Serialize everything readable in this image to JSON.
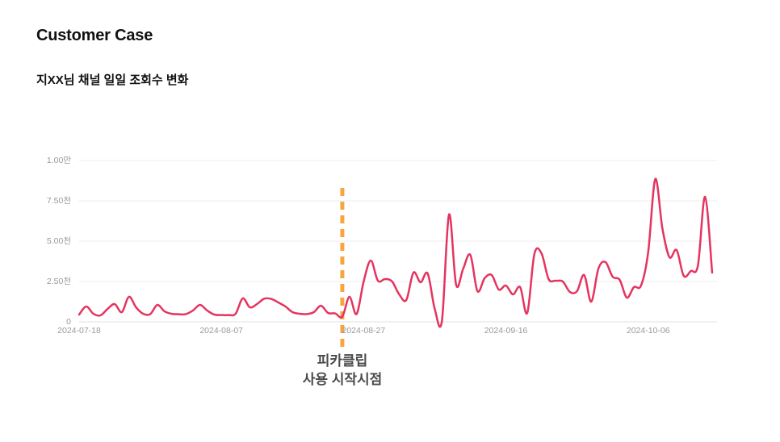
{
  "header": {
    "title": "Customer Case",
    "subtitle": "지XX님 채널 일일 조회수 변화"
  },
  "chart_data": {
    "type": "line",
    "title": "지XX님 채널 일일 조회수 변화",
    "x_start_date": "2024-07-18",
    "x_unit": "day",
    "x_tick_labels": [
      "2024-07-18",
      "2024-08-07",
      "2024-08-27",
      "2024-09-16",
      "2024-10-06"
    ],
    "x_tick_day_indices": [
      0,
      20,
      40,
      60,
      80
    ],
    "y_ticks": [
      {
        "value": 0,
        "label": "0"
      },
      {
        "value": 2500,
        "label": "2.50천"
      },
      {
        "value": 5000,
        "label": "5.00천"
      },
      {
        "value": 7500,
        "label": "7.50천"
      },
      {
        "value": 10000,
        "label": "1.00만"
      }
    ],
    "ylim": [
      0,
      10000
    ],
    "grid": "horizontal-only",
    "legend": "none",
    "series": [
      {
        "name": "daily-views",
        "color": "#E4345F",
        "values": [
          450,
          950,
          500,
          400,
          800,
          1100,
          600,
          1550,
          900,
          500,
          480,
          1050,
          650,
          500,
          470,
          480,
          700,
          1050,
          700,
          450,
          420,
          420,
          500,
          1450,
          900,
          1100,
          1430,
          1420,
          1200,
          950,
          600,
          500,
          480,
          600,
          1000,
          550,
          520,
          320,
          1550,
          480,
          2500,
          3800,
          2550,
          2650,
          2500,
          1700,
          1350,
          3050,
          2450,
          3000,
          800,
          50,
          6650,
          2300,
          3300,
          4150,
          1900,
          2700,
          2900,
          2000,
          2250,
          1700,
          2150,
          550,
          4200,
          4250,
          2650,
          2550,
          2500,
          1850,
          1900,
          2900,
          1250,
          3300,
          3700,
          2800,
          2600,
          1500,
          2150,
          2250,
          4300,
          8850,
          5800,
          4000,
          4450,
          2850,
          3150,
          3500,
          7750,
          3050
        ]
      }
    ],
    "marker": {
      "day_index": 37,
      "style": "dashed-vertical",
      "color": "#F6A63E",
      "label_line1": "피카클립",
      "label_line2": "사용 시작시점"
    }
  },
  "colors": {
    "background": "#ffffff",
    "line": "#E4345F",
    "marker": "#F6A63E",
    "gridline": "#ededed",
    "baseline": "#e0e0e0",
    "axis_text": "#999999",
    "annotation_text": "#4a4a4a",
    "title_text": "#111111"
  }
}
